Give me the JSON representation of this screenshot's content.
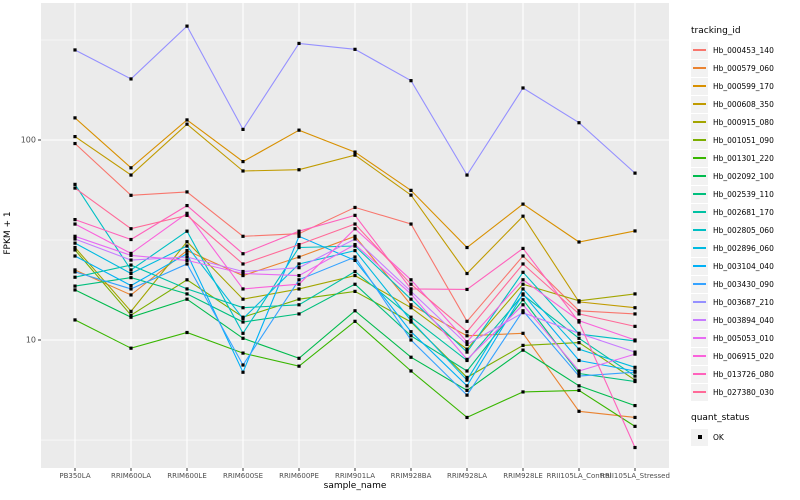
{
  "figure": {
    "background": "#FFFFFF",
    "panel_background": "#EBEBEB",
    "grid_color": "#FFFFFF",
    "tick_label_color": "#4D4D4D",
    "point_color": "#000000"
  },
  "chart_data": {
    "type": "line",
    "title": "",
    "xlabel": "sample_name",
    "ylabel": "FPKM + 1",
    "y_scale": "log10",
    "ylim": [
      2.3,
      484
    ],
    "y_ticks": [
      100,
      10
    ],
    "y_minor_ticks": [
      316.23,
      31.62,
      3.16
    ],
    "grid": "on",
    "legend_position": "right",
    "legend_title": "tracking_id",
    "legend2_title": "quant_status",
    "legend2_items": [
      "OK"
    ],
    "categories": [
      "PB350LA",
      "RRIM600LA",
      "RRIM600LE",
      "RRIM600SE",
      "RRIM600PE",
      "RRIM901LA",
      "RRIM928BA",
      "RRIM928LA",
      "RRIM928LE",
      "RRII105LA_Control",
      "RRII105LA_Stressed"
    ],
    "series": [
      {
        "name": "Hb_000453_140",
        "color": "#F8766D",
        "values": [
          96,
          52.9,
          55,
          33,
          34,
          46,
          38,
          12.4,
          26.3,
          14,
          13.5
        ]
      },
      {
        "name": "Hb_000579_060",
        "color": "#EA8331",
        "values": [
          22.4,
          16.8,
          28,
          21,
          26,
          33,
          15,
          10.5,
          10.8,
          4.4,
          4.1
        ]
      },
      {
        "name": "Hb_000599_170",
        "color": "#D89000",
        "values": [
          129,
          72.6,
          126,
          78,
          112,
          87,
          56,
          29,
          47.8,
          30.9,
          35.1
        ]
      },
      {
        "name": "Hb_000608_350",
        "color": "#C09B00",
        "values": [
          104,
          66.8,
          120,
          70,
          71,
          84,
          53,
          21.5,
          41.6,
          15.5,
          14.5
        ]
      },
      {
        "name": "Hb_000915_080",
        "color": "#A3A500",
        "values": [
          29,
          13.9,
          31,
          16,
          18,
          21,
          14.5,
          9,
          19,
          15.7,
          17
        ]
      },
      {
        "name": "Hb_001051_090",
        "color": "#7CAE00",
        "values": [
          28.2,
          13.3,
          20,
          13,
          16,
          17.5,
          12.3,
          6.5,
          9.4,
          9.7,
          6.3
        ]
      },
      {
        "name": "Hb_001301_220",
        "color": "#39B600",
        "values": [
          12.6,
          9.1,
          10.9,
          8.6,
          7.4,
          12.4,
          7,
          4.1,
          5.5,
          5.6,
          3.7
        ]
      },
      {
        "name": "Hb_002092_100",
        "color": "#00BB4E",
        "values": [
          17.8,
          13,
          16,
          10.2,
          8.1,
          14,
          8.2,
          5.6,
          8.9,
          5.9,
          4.7
        ]
      },
      {
        "name": "Hb_002539_110",
        "color": "#00BF7D",
        "values": [
          18.6,
          20.5,
          17,
          12.3,
          13.5,
          19,
          10.5,
          7,
          15.9,
          6.8,
          6.2
        ]
      },
      {
        "name": "Hb_002681_170",
        "color": "#00C1A3",
        "values": [
          20.6,
          23.7,
          18,
          14.5,
          15,
          22,
          13,
          7.9,
          16.8,
          10.2,
          6.6
        ]
      },
      {
        "name": "Hb_002805_060",
        "color": "#00BFC4",
        "values": [
          60,
          22.4,
          35,
          10.8,
          29,
          29.5,
          16,
          8.7,
          21.8,
          10.7,
          9.9
        ]
      },
      {
        "name": "Hb_002896_060",
        "color": "#00BAE0",
        "values": [
          30.5,
          21.5,
          29.5,
          12.8,
          24,
          28,
          12.5,
          6.3,
          18,
          9,
          7.3
        ]
      },
      {
        "name": "Hb_003104_040",
        "color": "#00B0F6",
        "values": [
          26.3,
          18.7,
          27,
          6.9,
          33,
          25,
          11,
          5.9,
          17,
          7.9,
          7
        ]
      },
      {
        "name": "Hb_003430_090",
        "color": "#35A2FF",
        "values": [
          21.9,
          18,
          24,
          7.5,
          20,
          26,
          10,
          5.3,
          14,
          6.6,
          6.9
        ]
      },
      {
        "name": "Hb_003687_210",
        "color": "#9590FF",
        "values": [
          282,
          202,
          371,
          113,
          304,
          284,
          198,
          66.8,
          182,
          122,
          68.3
        ]
      },
      {
        "name": "Hb_003894_040",
        "color": "#C77CFF",
        "values": [
          32,
          25.1,
          26,
          22,
          23,
          32,
          17.5,
          9.5,
          13.7,
          10.8,
          8.7
        ]
      },
      {
        "name": "Hb_005053_010",
        "color": "#E76BF3",
        "values": [
          33,
          26.5,
          25,
          21.5,
          21,
          30,
          17,
          8,
          15,
          7,
          8.5
        ]
      },
      {
        "name": "Hb_006915_020",
        "color": "#FA62DB",
        "values": [
          38,
          27.1,
          43,
          18,
          19,
          36,
          20,
          9.8,
          20,
          12.5,
          10
        ]
      },
      {
        "name": "Hb_013726_080",
        "color": "#FF62BC",
        "values": [
          40,
          31.8,
          47,
          27,
          35,
          42,
          18,
          17.9,
          28.7,
          12.3,
          2.9
        ]
      },
      {
        "name": "Hb_027380_030",
        "color": "#FF6A98",
        "values": [
          57.5,
          36,
          42,
          24,
          30,
          38,
          19,
          11,
          24,
          13.5,
          11.7
        ]
      }
    ]
  }
}
